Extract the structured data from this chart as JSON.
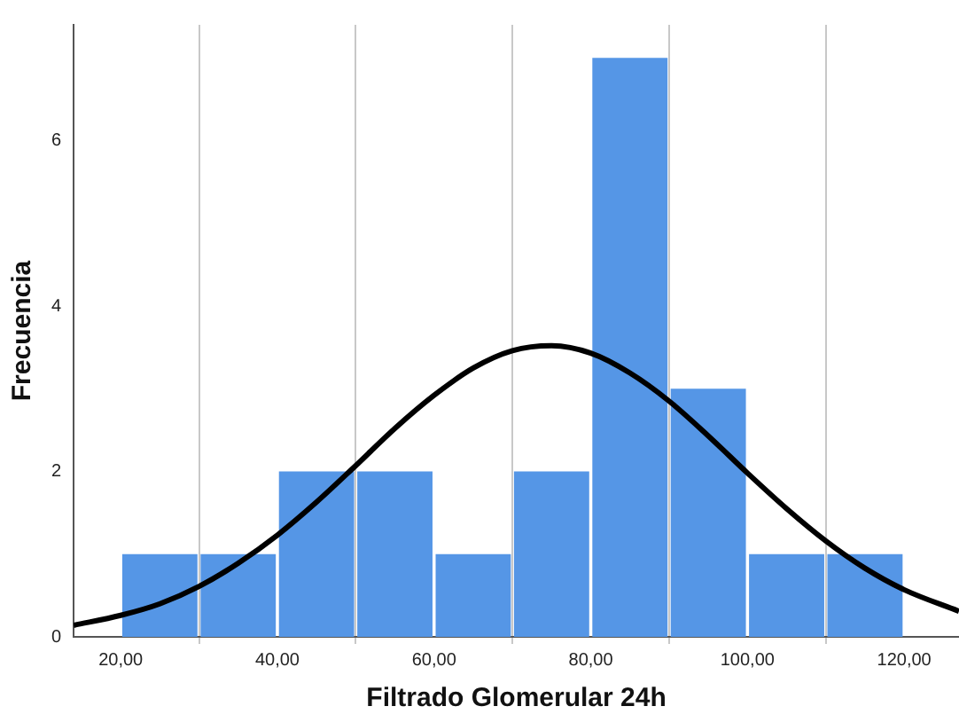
{
  "chart_data": {
    "type": "histogram",
    "xlabel": "Filtrado Glomerular 24h",
    "ylabel": "Frecuencia",
    "bins": [
      20,
      30,
      40,
      50,
      60,
      70,
      80,
      90,
      100,
      110,
      120
    ],
    "values": [
      1,
      1,
      2,
      2,
      1,
      2,
      7,
      3,
      1,
      1
    ],
    "color": "#5596e6",
    "series": [
      {
        "type": "line",
        "color": "#000000",
        "x": [
          14,
          20,
          25,
          30,
          35,
          40,
          45,
          50,
          55,
          60,
          65,
          70,
          75,
          80,
          85,
          90,
          95,
          100,
          105,
          110,
          115,
          120,
          127
        ],
        "values": [
          0.14,
          0.26,
          0.4,
          0.61,
          0.89,
          1.23,
          1.63,
          2.07,
          2.52,
          2.92,
          3.25,
          3.46,
          3.52,
          3.43,
          3.19,
          2.85,
          2.43,
          1.98,
          1.55,
          1.16,
          0.83,
          0.57,
          0.31
        ]
      }
    ],
    "xlim": [
      14,
      127
    ],
    "ylim": [
      0,
      7.4
    ],
    "xticks": [
      {
        "value": 20,
        "label": "20,00"
      },
      {
        "value": 40,
        "label": "40,00"
      },
      {
        "value": 60,
        "label": "60,00"
      },
      {
        "value": 80,
        "label": "80,00"
      },
      {
        "value": 100,
        "label": "100,00"
      },
      {
        "value": 120,
        "label": "120,00"
      }
    ],
    "yticks": [
      0,
      2,
      4,
      6
    ],
    "grid": "x",
    "legend": false,
    "marker": "none",
    "line_style": "solid"
  }
}
